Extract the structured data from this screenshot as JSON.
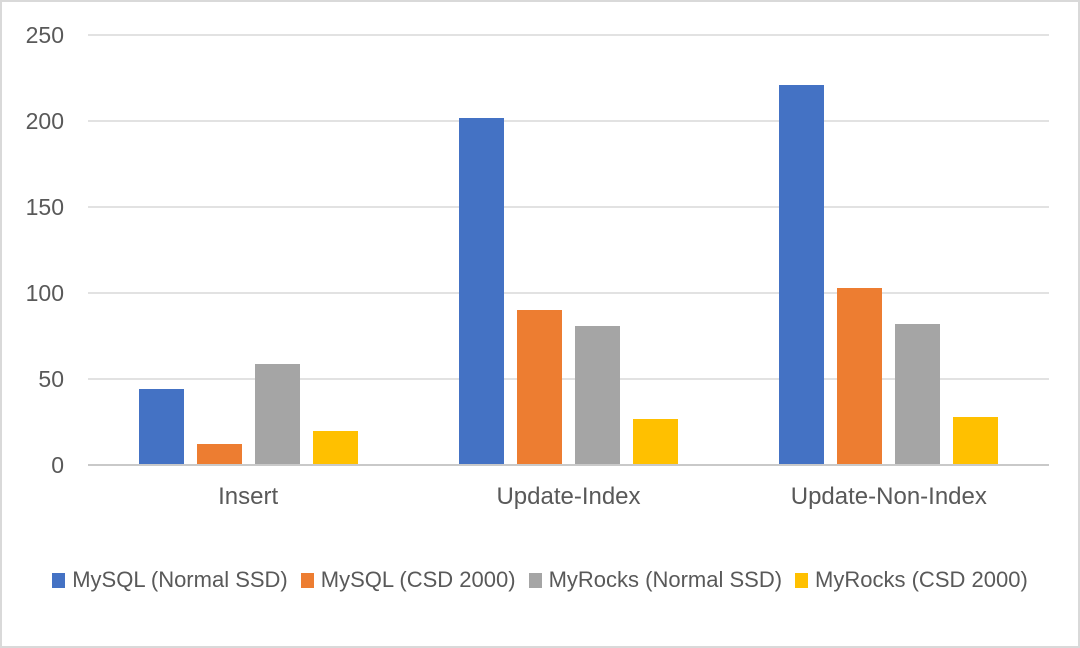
{
  "chart_data": {
    "type": "bar",
    "title": "",
    "xlabel": "",
    "ylabel": "",
    "categories": [
      "Insert",
      "Update-Index",
      "Update-Non-Index"
    ],
    "series": [
      {
        "name": "MySQL (Normal SSD)",
        "color": "#4472C4",
        "values": [
          44,
          202,
          221
        ]
      },
      {
        "name": "MySQL (CSD 2000)",
        "color": "#ED7D31",
        "values": [
          12,
          90,
          103
        ]
      },
      {
        "name": "MyRocks (Normal SSD)",
        "color": "#A5A5A5",
        "values": [
          59,
          81,
          82
        ]
      },
      {
        "name": "MyRocks (CSD 2000)",
        "color": "#FFC000",
        "values": [
          20,
          27,
          28
        ]
      }
    ],
    "ylim": [
      0,
      250
    ],
    "yticks": [
      0,
      50,
      100,
      150,
      200,
      250
    ],
    "grid": true,
    "legend_position": "bottom"
  },
  "colors": {
    "gridline": "#E2E2E2",
    "axis_line": "#C9C9C9",
    "text": "#595959",
    "border": "#D9D9D9",
    "background": "#FFFFFF"
  }
}
